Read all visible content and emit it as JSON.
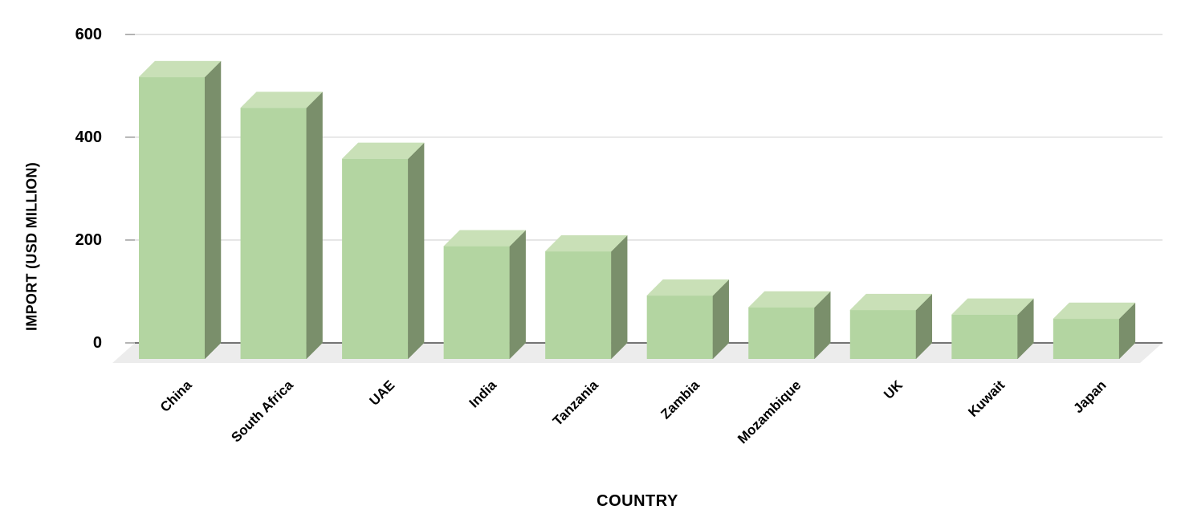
{
  "chart_data": {
    "type": "bar",
    "style": "3d-column",
    "title": "",
    "xlabel": "COUNTRY",
    "ylabel": "IMPORT (USD MILLION)",
    "categories": [
      "China",
      "South Africa",
      "UAE",
      "India",
      "Tanzania",
      "Zambia",
      "Mozambique",
      "UK",
      "Kuwait",
      "Japan"
    ],
    "values": [
      548,
      488,
      389,
      219,
      209,
      123,
      100,
      95,
      86,
      78
    ],
    "yticks": [
      0,
      200,
      400,
      600
    ],
    "ylim": [
      0,
      600
    ],
    "grid": true,
    "legend": "none",
    "colors": {
      "bar_front": "#b3d5a1",
      "bar_top": "#c9e0b7",
      "bar_side": "#7a8f6b",
      "floor": "#ececec",
      "gridline": "#d9d9d9",
      "tick_mark": "#8c8c8c",
      "axis_line": "#262626",
      "text": "#000000"
    }
  }
}
